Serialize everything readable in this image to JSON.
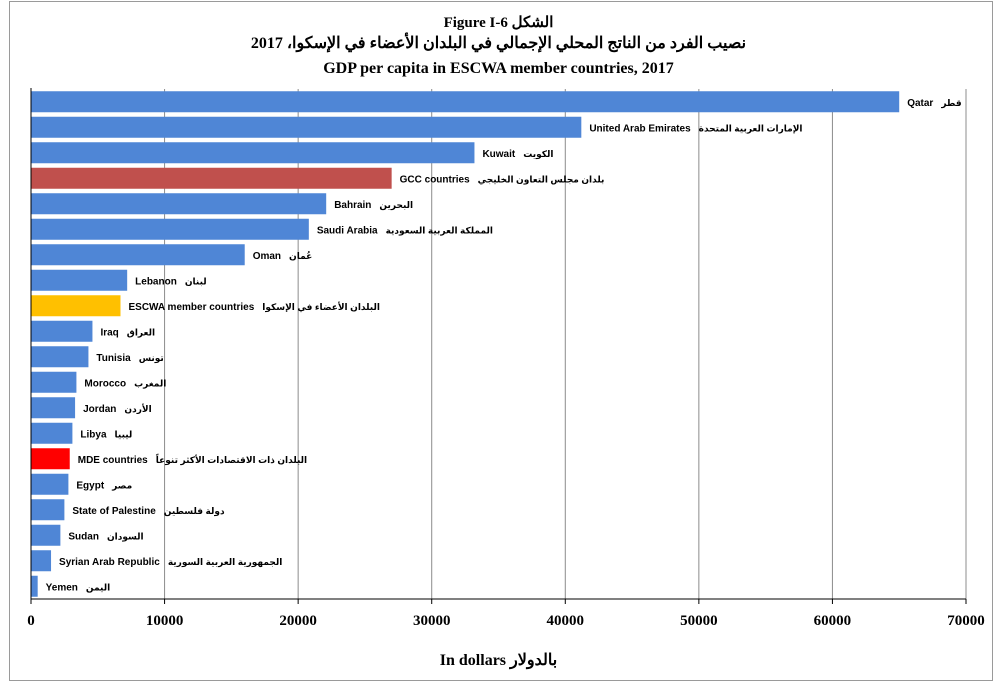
{
  "chart_data": {
    "type": "bar",
    "orientation": "horizontal",
    "title": "Figure I-6 الشكل",
    "subtitle_ar": "نصيب الفرد من الناتج المحلي الإجمالي في البلدان الأعضاء في الإسكوا، 2017",
    "subtitle_en": "GDP per capita in ESCWA member countries, 2017",
    "xlabel": "In dollars بالدولار",
    "ylabel": "",
    "xlim": [
      0,
      70000
    ],
    "xticks": [
      "0",
      "10000",
      "20000",
      "30000",
      "40000",
      "50000",
      "60000",
      "70000"
    ],
    "grid": "vertical",
    "legend": "none",
    "categories": [
      {
        "en": "Qatar",
        "ar": "قطر",
        "value": 65000,
        "color": "#4f86d6"
      },
      {
        "en": "United Arab Emirates",
        "ar": "الإمارات العربية المتحدة",
        "value": 41200,
        "color": "#4f86d6"
      },
      {
        "en": "Kuwait",
        "ar": "الكويت",
        "value": 33200,
        "color": "#4f86d6"
      },
      {
        "en": "GCC countries",
        "ar": "بلدان مجلس التعاون الخليجي",
        "value": 27000,
        "color": "#c0504d"
      },
      {
        "en": "Bahrain",
        "ar": "البحرين",
        "value": 22100,
        "color": "#4f86d6"
      },
      {
        "en": "Saudi Arabia",
        "ar": "المملكة العربية السعودية",
        "value": 20800,
        "color": "#4f86d6"
      },
      {
        "en": "Oman",
        "ar": "عُمان",
        "value": 16000,
        "color": "#4f86d6"
      },
      {
        "en": "Lebanon",
        "ar": "لبنان",
        "value": 7200,
        "color": "#4f86d6"
      },
      {
        "en": "ESCWA member countries",
        "ar": "البلدان الأعضاء في الإسكوا",
        "value": 6700,
        "color": "#ffc000"
      },
      {
        "en": "Iraq",
        "ar": "العراق",
        "value": 4600,
        "color": "#4f86d6"
      },
      {
        "en": "Tunisia",
        "ar": "تونس",
        "value": 4300,
        "color": "#4f86d6"
      },
      {
        "en": "Morocco",
        "ar": "المغرب",
        "value": 3400,
        "color": "#4f86d6"
      },
      {
        "en": "Jordan",
        "ar": "الأردن",
        "value": 3300,
        "color": "#4f86d6"
      },
      {
        "en": "Libya",
        "ar": "ليبيا",
        "value": 3100,
        "color": "#4f86d6"
      },
      {
        "en": "MDE countries",
        "ar": "البلدان ذات الاقتصادات الأكثر تنوعاً",
        "value": 2900,
        "color": "#ff0000"
      },
      {
        "en": "Egypt",
        "ar": "مصر",
        "value": 2800,
        "color": "#4f86d6"
      },
      {
        "en": "State of Palestine",
        "ar": "دولة فلسطين",
        "value": 2500,
        "color": "#4f86d6"
      },
      {
        "en": "Sudan",
        "ar": "السودان",
        "value": 2200,
        "color": "#4f86d6"
      },
      {
        "en": "Syrian Arab Republic",
        "ar": "الجمهورية العربية السورية",
        "value": 1500,
        "color": "#4f86d6"
      },
      {
        "en": "Yemen",
        "ar": "اليمن",
        "value": 500,
        "color": "#4f86d6"
      }
    ]
  }
}
